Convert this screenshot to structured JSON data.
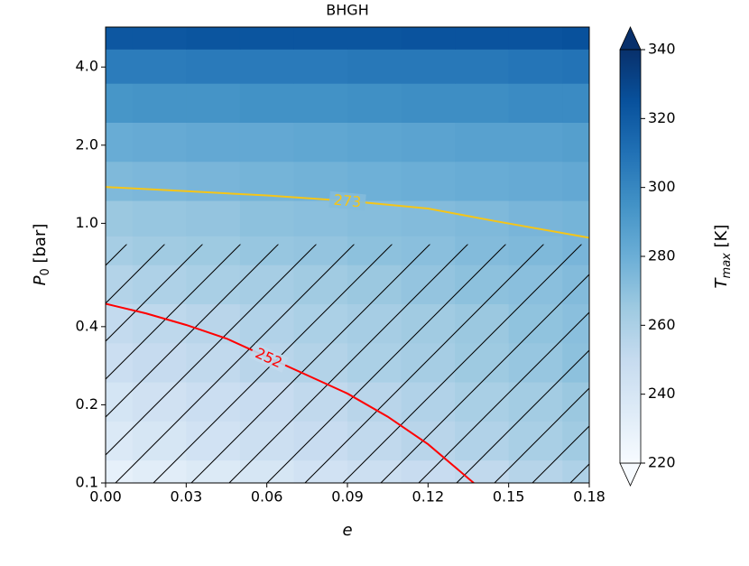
{
  "chart_data": {
    "type": "contour",
    "title": "BHGH",
    "xlabel": "e",
    "ylabel": [
      "P",
      "0",
      " [bar]"
    ],
    "clabel": [
      "T",
      "max",
      " [K]"
    ],
    "xlim": [
      0,
      0.18
    ],
    "ylim": [
      0.1,
      5.7
    ],
    "log_y": true,
    "xticks": [
      {
        "value": 0,
        "label": "0.00"
      },
      {
        "value": 0.03,
        "label": "0.03"
      },
      {
        "value": 0.06,
        "label": "0.06"
      },
      {
        "value": 0.09,
        "label": "0.09"
      },
      {
        "value": 0.12,
        "label": "0.12"
      },
      {
        "value": 0.15,
        "label": "0.15"
      },
      {
        "value": 0.18,
        "label": "0.18"
      }
    ],
    "yticks": [
      0.1,
      0.2,
      0.4,
      {
        "value": 1,
        "label": "1.0"
      },
      {
        "value": 2,
        "label": "2.0"
      },
      {
        "value": 4,
        "label": "4.0"
      }
    ],
    "clim": [
      220,
      340
    ],
    "cticks": [
      220,
      240,
      260,
      280,
      300,
      320,
      340
    ],
    "cmap_colors": [
      "#f7fbff",
      "#deebf7",
      "#c6dbef",
      "#9ecae1",
      "#6baed6",
      "#4292c6",
      "#2171b5",
      "#08519c",
      "#08306b"
    ],
    "x": [
      0,
      0.02,
      0.04,
      0.06,
      0.08,
      0.1,
      0.12,
      0.14,
      0.16,
      0.18
    ],
    "y": [
      0.1,
      0.15,
      0.2,
      0.3,
      0.4,
      0.6,
      0.8,
      1.0,
      1.5,
      2.0,
      3.0,
      4.0,
      5.5
    ],
    "z": [
      [
        230,
        233,
        236,
        240,
        243,
        246,
        249,
        252,
        256,
        259
      ],
      [
        237,
        240,
        243,
        246,
        249,
        252,
        255,
        258,
        261,
        264
      ],
      [
        241,
        244,
        247,
        249,
        252,
        255,
        258,
        261,
        263,
        266
      ],
      [
        247,
        250,
        252,
        255,
        257,
        260,
        262,
        265,
        267,
        270
      ],
      [
        251,
        253,
        255,
        258,
        260,
        262,
        264,
        266,
        269,
        271
      ],
      [
        257,
        259,
        261,
        262,
        264,
        266,
        268,
        270,
        271,
        273
      ],
      [
        262,
        264,
        265,
        267,
        268,
        270,
        271,
        273,
        274,
        276
      ],
      [
        266,
        267,
        268,
        270,
        271,
        272,
        273,
        274,
        276,
        277
      ],
      [
        274,
        275,
        276,
        277,
        278,
        279,
        280,
        281,
        282,
        283
      ],
      [
        281,
        282,
        283,
        283,
        284,
        285,
        286,
        287,
        287,
        288
      ],
      [
        293,
        294,
        294,
        295,
        295,
        296,
        297,
        297,
        298,
        298
      ],
      [
        305,
        305,
        306,
        306,
        306,
        307,
        307,
        307,
        308,
        309
      ],
      [
        322,
        322,
        323,
        323,
        323,
        323,
        324,
        324,
        324,
        325
      ]
    ],
    "hatch_below": 0.83,
    "series": [
      {
        "name": "273",
        "color": "#f5c518",
        "x": [
          0,
          0.03,
          0.06,
          0.09,
          0.12,
          0.145,
          0.18
        ],
        "values": [
          1.38,
          1.33,
          1.28,
          1.22,
          1.14,
          1.02,
          0.88
        ]
      },
      {
        "name": "252",
        "color": "#ff0000",
        "x": [
          0,
          0.015,
          0.03,
          0.045,
          0.06,
          0.075,
          0.09,
          0.105,
          0.12,
          0.137
        ],
        "values": [
          0.49,
          0.45,
          0.406,
          0.36,
          0.306,
          0.26,
          0.221,
          0.18,
          0.141,
          0.1
        ]
      }
    ]
  }
}
